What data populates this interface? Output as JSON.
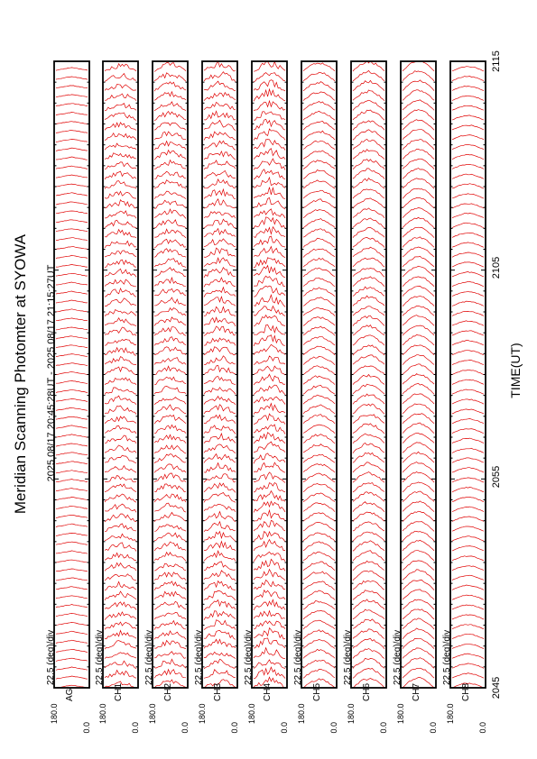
{
  "chart_data": {
    "type": "line",
    "title": "Meridian Scanning Photomter at SYOWA",
    "subtitle": "2025 08/17 20:45:28UT - 2025 08/17 21:15:27UT",
    "xlabel": "TIME(UT)",
    "x_ticks": [
      "2045",
      "2055",
      "2105",
      "2115"
    ],
    "panels": [
      {
        "ch_label": "AG",
        "scale_label": "22.5 (deg)/div",
        "y_top": "180.0",
        "y_bottom": "0.0"
      },
      {
        "ch_label": "CH1",
        "scale_label": "22.5 (deg)/div",
        "y_top": "180.0",
        "y_bottom": "0.0"
      },
      {
        "ch_label": "CH2",
        "scale_label": "22.5 (deg)/div",
        "y_top": "180.0",
        "y_bottom": "0.0"
      },
      {
        "ch_label": "CH3",
        "scale_label": "22.5 (deg)/div",
        "y_top": "180.0",
        "y_bottom": "0.0"
      },
      {
        "ch_label": "CH4",
        "scale_label": "22.5 (deg)/div",
        "y_top": "180.0",
        "y_bottom": "0.0"
      },
      {
        "ch_label": "CH5",
        "scale_label": "22.5 (deg)/div",
        "y_top": "180.0",
        "y_bottom": "0.0"
      },
      {
        "ch_label": "CH6",
        "scale_label": "22.5 (deg)/div",
        "y_top": "180.0",
        "y_bottom": "0.0"
      },
      {
        "ch_label": "CH7",
        "scale_label": "22.5 (deg)/div",
        "y_top": "180.0",
        "y_bottom": "0.0"
      },
      {
        "ch_label": "CH8",
        "scale_label": "22.5 (deg)/div",
        "y_top": "180.0",
        "y_bottom": "0.0"
      }
    ],
    "line_color": "#e00000",
    "grid": false
  }
}
